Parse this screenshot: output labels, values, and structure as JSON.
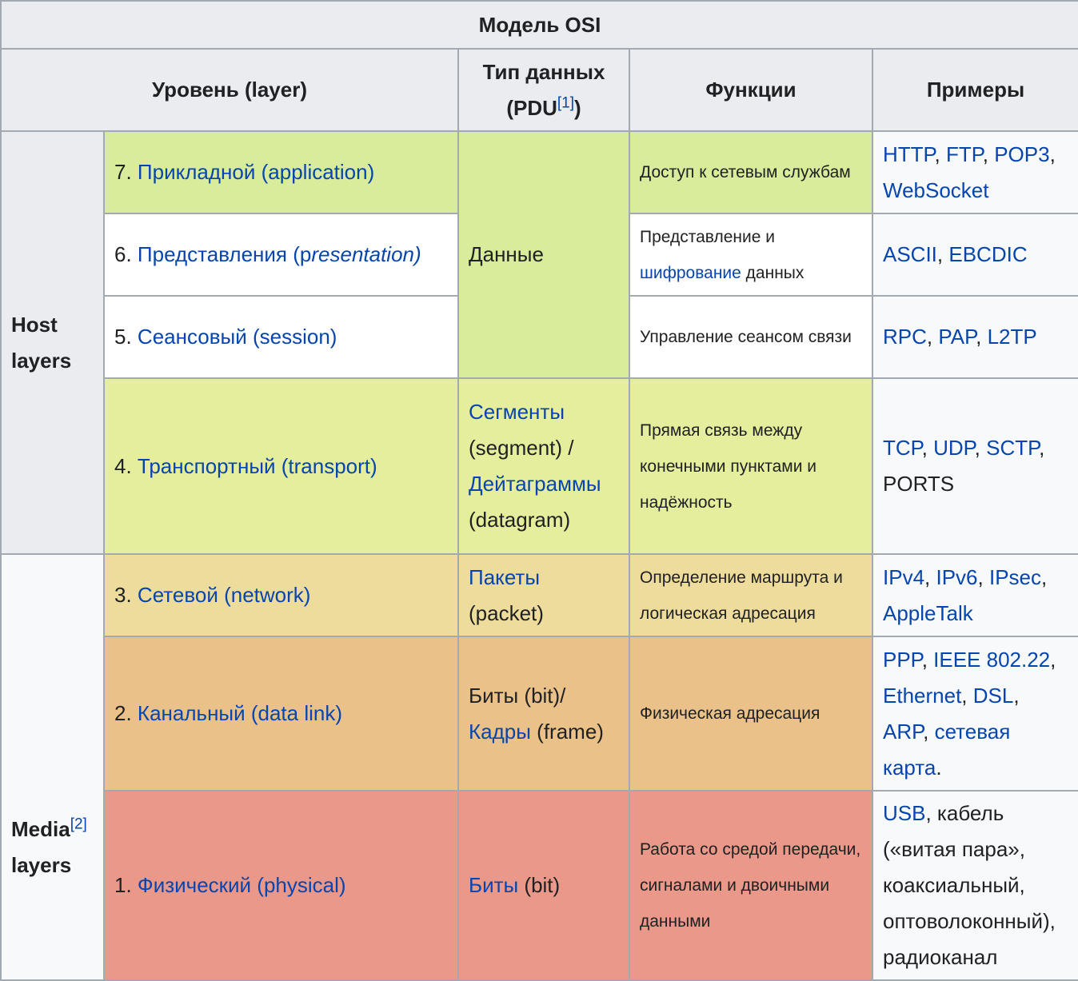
{
  "title": "Модель OSI",
  "headers": {
    "level": "Уровень (layer)",
    "pdu": "Тип данных (PDU",
    "pdu_ref": "[1]",
    "pdu_close": ")",
    "functions": "Функции",
    "examples": "Примеры"
  },
  "groups": {
    "host": "Host layers",
    "media": "Media",
    "media_ref": "[2]",
    "media2": "layers"
  },
  "colors": {
    "application": "#d8ec9c",
    "transport": "#e5ee9c",
    "network": "#eddc9c",
    "datalink": "#e9c189",
    "physical": "#e9988a",
    "link": "#0645ad"
  },
  "rows": [
    {
      "id": "application",
      "level": [
        {
          "t": "7. "
        },
        {
          "t": "Прикладной (application)",
          "l": 1
        }
      ],
      "pdu": [
        {
          "t": "Данные"
        }
      ],
      "fn": [
        {
          "t": "Доступ к сетевым службам"
        }
      ],
      "ex": [
        {
          "t": "HTTP",
          "l": 1
        },
        {
          "t": ", "
        },
        {
          "t": "FTP",
          "l": 1
        },
        {
          "t": ", "
        },
        {
          "t": "POP3",
          "l": 1
        },
        {
          "t": ", "
        },
        {
          "t": "WebSocket",
          "l": 1
        }
      ]
    },
    {
      "id": "presentation",
      "level": [
        {
          "t": "6. "
        },
        {
          "t": "Представления (p",
          "l": 1
        },
        {
          "t": "resentation)",
          "l": 1,
          "i": 1
        }
      ],
      "fn": [
        {
          "t": "Представление и "
        },
        {
          "t": "шифрование",
          "l": 1
        },
        {
          "t": " данных"
        }
      ],
      "ex": [
        {
          "t": "ASCII",
          "l": 1
        },
        {
          "t": ", "
        },
        {
          "t": "EBCDIC",
          "l": 1
        }
      ]
    },
    {
      "id": "session",
      "level": [
        {
          "t": "5. "
        },
        {
          "t": "Сеансовый (session)",
          "l": 1
        }
      ],
      "fn": [
        {
          "t": "Управление сеансом связи"
        }
      ],
      "ex": [
        {
          "t": "RPC",
          "l": 1
        },
        {
          "t": ", "
        },
        {
          "t": "PAP",
          "l": 1
        },
        {
          "t": ", "
        },
        {
          "t": "L2TP",
          "l": 1
        }
      ]
    },
    {
      "id": "transport",
      "level": [
        {
          "t": "4. "
        },
        {
          "t": "Транспортный (transport)",
          "l": 1
        }
      ],
      "pdu": [
        {
          "t": "Сегменты",
          "l": 1
        },
        {
          "t": " (segment) /"
        },
        {
          "t": "Дейтаграммы",
          "l": 1
        },
        {
          "t": " (datagram)"
        }
      ],
      "fn": [
        {
          "t": "Прямая связь между конечными пунктами и надёжность"
        }
      ],
      "ex": [
        {
          "t": "TCP",
          "l": 1
        },
        {
          "t": ", "
        },
        {
          "t": "UDP",
          "l": 1
        },
        {
          "t": ", "
        },
        {
          "t": "SCTP",
          "l": 1
        },
        {
          "t": ", PORTS"
        }
      ]
    },
    {
      "id": "network",
      "level": [
        {
          "t": "3. "
        },
        {
          "t": "Сетевой (network)",
          "l": 1
        }
      ],
      "pdu": [
        {
          "t": "Пакеты",
          "l": 1
        },
        {
          "t": " (packet)"
        }
      ],
      "fn": [
        {
          "t": "Определение маршрута и логическая адресация"
        }
      ],
      "ex": [
        {
          "t": "IPv4",
          "l": 1
        },
        {
          "t": ", "
        },
        {
          "t": "IPv6",
          "l": 1
        },
        {
          "t": ", "
        },
        {
          "t": "IPsec",
          "l": 1
        },
        {
          "t": ", "
        },
        {
          "t": "AppleTalk",
          "l": 1
        }
      ]
    },
    {
      "id": "datalink",
      "level": [
        {
          "t": "2. "
        },
        {
          "t": "Канальный (data link)",
          "l": 1
        }
      ],
      "pdu": [
        {
          "t": "Биты (bit)/ "
        },
        {
          "t": "Кадры",
          "l": 1
        },
        {
          "t": " (frame)"
        }
      ],
      "fn": [
        {
          "t": "Физическая адресация"
        }
      ],
      "ex": [
        {
          "t": "PPP",
          "l": 1
        },
        {
          "t": ", "
        },
        {
          "t": "IEEE 802.22",
          "l": 1
        },
        {
          "t": ", "
        },
        {
          "t": "Ethernet",
          "l": 1
        },
        {
          "t": ", "
        },
        {
          "t": "DSL",
          "l": 1
        },
        {
          "t": ", "
        },
        {
          "t": "ARP",
          "l": 1
        },
        {
          "t": ", "
        },
        {
          "t": "сетевая карта",
          "l": 1
        },
        {
          "t": "."
        }
      ]
    },
    {
      "id": "physical",
      "level": [
        {
          "t": "1. "
        },
        {
          "t": "Физический (physical)",
          "l": 1
        }
      ],
      "pdu": [
        {
          "t": "Биты",
          "l": 1
        },
        {
          "t": " (bit)"
        }
      ],
      "fn": [
        {
          "t": "Работа со средой передачи, сигналами и двоичными данными"
        }
      ],
      "ex": [
        {
          "t": "USB",
          "l": 1
        },
        {
          "t": ", кабель («витая пара», коаксиальный, оптоволоконный), радиоканал"
        }
      ]
    }
  ]
}
